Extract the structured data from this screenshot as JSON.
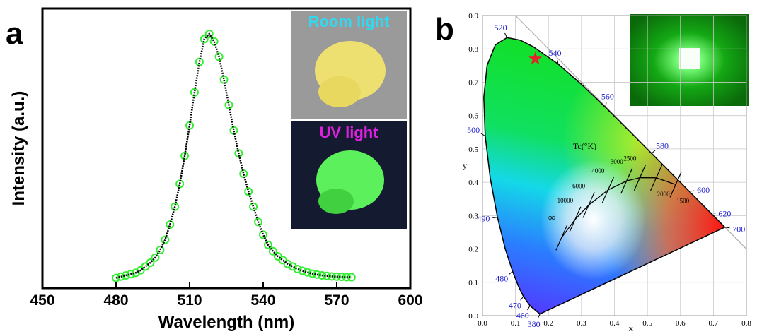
{
  "chart_data": [
    {
      "type": "line",
      "panel_label": "a",
      "xlabel": "Wavelength (nm)",
      "ylabel": "Intensity (a.u.)",
      "xlim": [
        450,
        600
      ],
      "xticks": [
        450,
        480,
        510,
        540,
        570,
        600
      ],
      "ylim": [
        0,
        1.1
      ],
      "insets": [
        "Room light",
        "UV light"
      ],
      "x": [
        480,
        482,
        484,
        486,
        488,
        490,
        492,
        494,
        496,
        498,
        500,
        502,
        504,
        506,
        508,
        510,
        512,
        514,
        516,
        518,
        520,
        522,
        524,
        526,
        528,
        530,
        532,
        534,
        536,
        538,
        540,
        542,
        544,
        546,
        548,
        550,
        552,
        554,
        556,
        558,
        560,
        562,
        564,
        566,
        568,
        570,
        572,
        574,
        576
      ],
      "series": [
        {
          "color": "#33ee33",
          "line_color": "#000000",
          "values": [
            0.04,
            0.045,
            0.05,
            0.055,
            0.06,
            0.07,
            0.085,
            0.1,
            0.12,
            0.15,
            0.19,
            0.25,
            0.32,
            0.41,
            0.52,
            0.64,
            0.77,
            0.89,
            0.98,
            1.0,
            0.97,
            0.91,
            0.82,
            0.72,
            0.62,
            0.53,
            0.45,
            0.38,
            0.32,
            0.26,
            0.21,
            0.17,
            0.145,
            0.125,
            0.11,
            0.095,
            0.085,
            0.075,
            0.068,
            0.062,
            0.057,
            0.053,
            0.05,
            0.048,
            0.046,
            0.045,
            0.044,
            0.043,
            0.043
          ]
        }
      ]
    },
    {
      "type": "cie",
      "panel_label": "b",
      "xlabel": "x",
      "ylabel": "y",
      "xlim": [
        0,
        0.8
      ],
      "ylim": [
        0,
        0.9
      ],
      "grid": true,
      "xticks": [
        {
          "value": 0,
          "label": "0.0"
        },
        0.1,
        0.2,
        0.3,
        0.4,
        0.5,
        0.6,
        0.7,
        0.8
      ],
      "yticks": [
        {
          "value": 0,
          "label": "0.0"
        },
        0.1,
        0.2,
        0.3,
        0.4,
        0.5,
        0.6,
        0.7,
        0.8,
        0.9
      ],
      "locus": {
        "x": [
          0.1741,
          0.144,
          0.1241,
          0.1096,
          0.0913,
          0.0687,
          0.0454,
          0.0235,
          0.0082,
          0.0039,
          0.0139,
          0.0389,
          0.0743,
          0.1142,
          0.1547,
          0.2296,
          0.3016,
          0.3731,
          0.4441,
          0.5125,
          0.5752,
          0.627,
          0.6915,
          0.7347
        ],
        "y": [
          0.005,
          0.0297,
          0.0578,
          0.0868,
          0.1327,
          0.2007,
          0.295,
          0.4127,
          0.5384,
          0.6548,
          0.7502,
          0.812,
          0.8338,
          0.8262,
          0.8059,
          0.7543,
          0.6923,
          0.6245,
          0.5547,
          0.4866,
          0.4242,
          0.3725,
          0.3083,
          0.2653
        ],
        "labels": [
          380,
          460,
          470,
          null,
          480,
          null,
          490,
          null,
          500,
          null,
          null,
          null,
          520,
          null,
          null,
          540,
          null,
          560,
          null,
          580,
          null,
          600,
          620,
          700
        ]
      },
      "planck_title": "Tc(°K)",
      "planck": {
        "x": [
          0.2399,
          0.2807,
          0.3221,
          0.3805,
          0.4369,
          0.477,
          0.5267,
          0.5857
        ],
        "y": [
          0.2342,
          0.2884,
          0.3318,
          0.3768,
          0.4041,
          0.4137,
          0.4133,
          0.3931
        ],
        "labels": [
          "∞",
          10000,
          6000,
          4000,
          3000,
          2500,
          2000,
          1500
        ]
      },
      "star": {
        "x": 0.16,
        "y": 0.77,
        "color": "#e8202a"
      }
    }
  ]
}
